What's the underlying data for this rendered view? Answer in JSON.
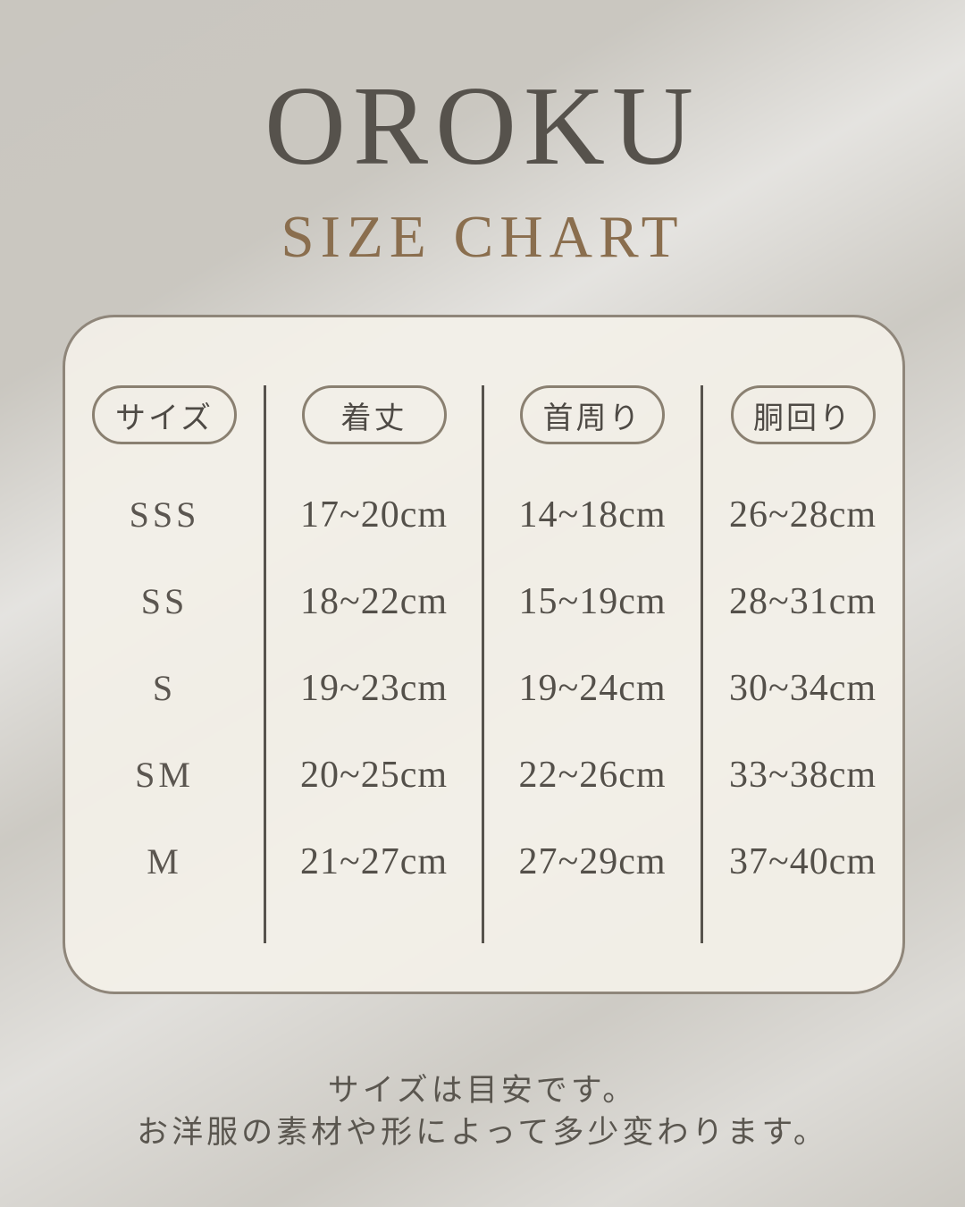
{
  "header": {
    "brand": "OROKU",
    "subtitle": "SIZE CHART"
  },
  "chart_data": {
    "type": "table",
    "title": "OROKU SIZE CHART",
    "columns": [
      "サイズ",
      "着丈",
      "首周り",
      "胴回り"
    ],
    "rows": [
      [
        "SSS",
        "17~20cm",
        "14~18cm",
        "26~28cm"
      ],
      [
        "SS",
        "18~22cm",
        "15~19cm",
        "28~31cm"
      ],
      [
        "S",
        "19~23cm",
        "19~24cm",
        "30~34cm"
      ],
      [
        "SM",
        "20~25cm",
        "22~26cm",
        "33~38cm"
      ],
      [
        "M",
        "21~27cm",
        "27~29cm",
        "37~40cm"
      ]
    ],
    "unit": "cm"
  },
  "footer": {
    "note_lines": [
      "サイズは目安です。",
      "お洋服の素材や形によって多少変わります。"
    ]
  },
  "colors": {
    "page_background": "#c8c5be",
    "card_background": "#f2efe7",
    "card_border": "#8f867a",
    "pill_border": "#8a8071",
    "text_dark": "#55514b",
    "accent_brown": "#8a6e4e",
    "divider": "#57534d"
  }
}
